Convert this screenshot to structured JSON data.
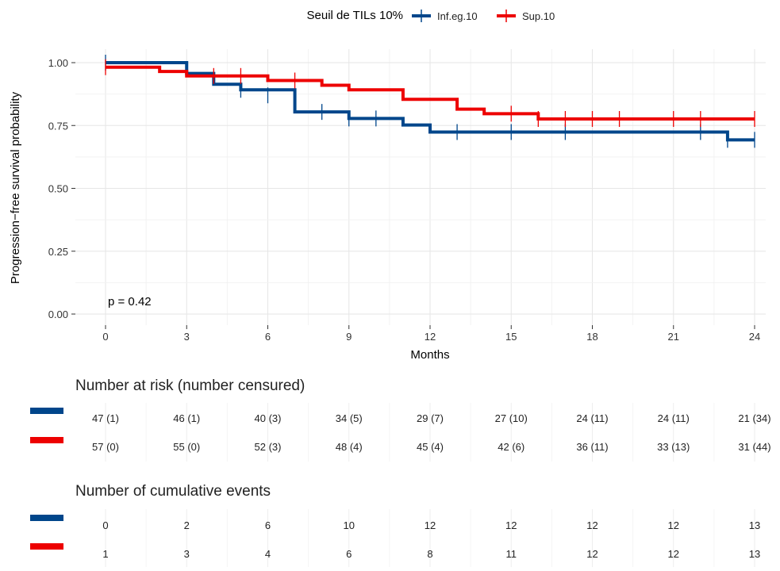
{
  "chart_data": {
    "type": "line",
    "title": "Seuil de TILs 10%",
    "xlabel": "Months",
    "ylabel": "Progression−free survival probability",
    "xlim": [
      0,
      24
    ],
    "ylim": [
      0,
      1
    ],
    "x_ticks": [
      0,
      3,
      6,
      9,
      12,
      15,
      18,
      21,
      24
    ],
    "y_ticks": [
      0,
      0.25,
      0.5,
      0.75,
      1
    ],
    "y_tick_labels": [
      "0.00",
      "0.25",
      "0.50",
      "0.75",
      "1.00"
    ],
    "grid": true,
    "legend_position": "top",
    "annotation": "p = 0.42",
    "series": [
      {
        "name": "Inf.eg.10",
        "color": "#00468B",
        "step_x": [
          0,
          3,
          4,
          5,
          7,
          9,
          11,
          12,
          23,
          24
        ],
        "step_y": [
          1.0,
          0.957,
          0.914,
          0.892,
          0.804,
          0.778,
          0.752,
          0.724,
          0.693,
          0.693
        ],
        "censor_x": [
          0,
          5,
          6,
          8,
          9,
          10,
          13,
          15,
          17,
          22,
          23,
          24
        ],
        "censor_y": [
          1.0,
          0.892,
          0.87,
          0.804,
          0.778,
          0.778,
          0.724,
          0.724,
          0.724,
          0.724,
          0.693,
          0.693
        ]
      },
      {
        "name": "Sup.10",
        "color": "#ED0000",
        "step_x": [
          0,
          2,
          3,
          6,
          8,
          9,
          11,
          13,
          14,
          16,
          24
        ],
        "step_y": [
          0.982,
          0.965,
          0.947,
          0.929,
          0.91,
          0.892,
          0.854,
          0.815,
          0.797,
          0.776,
          0.776
        ],
        "censor_x": [
          0,
          4,
          5,
          7,
          15,
          16,
          17,
          18,
          19,
          21,
          22,
          24
        ],
        "censor_y": [
          0.982,
          0.947,
          0.947,
          0.929,
          0.797,
          0.776,
          0.776,
          0.776,
          0.776,
          0.776,
          0.776,
          0.776
        ]
      }
    ],
    "risk_table": {
      "title": "Number at risk (number censured)",
      "rows": [
        [
          "47 (1)",
          "46 (1)",
          "40 (3)",
          "34 (5)",
          "29 (7)",
          "27 (10)",
          "24 (11)",
          "24 (11)",
          "21 (34)"
        ],
        [
          "57 (0)",
          "55 (0)",
          "52 (3)",
          "48 (4)",
          "45 (4)",
          "42 (6)",
          "36 (11)",
          "33 (13)",
          "31 (44)"
        ]
      ]
    },
    "events_table": {
      "title": "Number of cumulative events",
      "rows": [
        [
          "0",
          "2",
          "6",
          "10",
          "12",
          "12",
          "12",
          "12",
          "13"
        ],
        [
          "1",
          "3",
          "4",
          "6",
          "8",
          "11",
          "12",
          "12",
          "13"
        ]
      ]
    }
  }
}
